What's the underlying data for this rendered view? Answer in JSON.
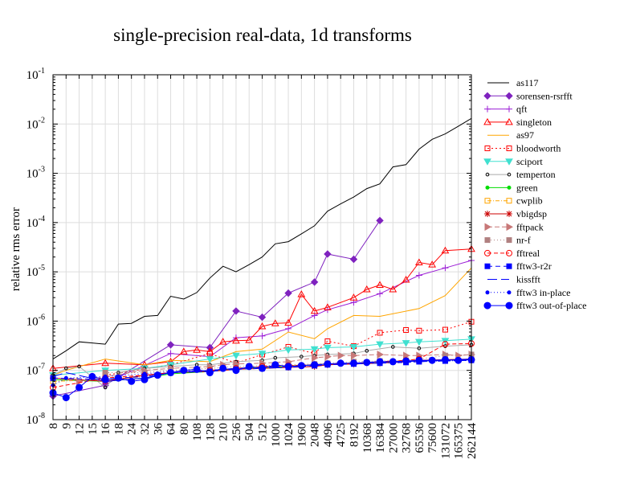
{
  "chart_data": {
    "type": "line",
    "title": "single-precision real-data, 1d transforms",
    "xlabel": "",
    "ylabel": "relative rms error",
    "y_scale": "log",
    "ylim": [
      1e-08,
      0.1
    ],
    "y_ticks": [
      {
        "base": "10",
        "exp": "-8",
        "value": 1e-08
      },
      {
        "base": "10",
        "exp": "-7",
        "value": 1e-07
      },
      {
        "base": "10",
        "exp": "-6",
        "value": 1e-06
      },
      {
        "base": "10",
        "exp": "-5",
        "value": 1e-05
      },
      {
        "base": "10",
        "exp": "-4",
        "value": 0.0001
      },
      {
        "base": "10",
        "exp": "-3",
        "value": 0.001
      },
      {
        "base": "10",
        "exp": "-2",
        "value": 0.01
      },
      {
        "base": "10",
        "exp": "-1",
        "value": 0.1
      }
    ],
    "grid": true,
    "legend_position": "right",
    "categories": [
      "8",
      "9",
      "12",
      "15",
      "16",
      "18",
      "24",
      "32",
      "36",
      "64",
      "80",
      "108",
      "128",
      "210",
      "256",
      "504",
      "512",
      "1000",
      "1024",
      "1960",
      "2048",
      "4096",
      "4725",
      "8192",
      "10368",
      "16384",
      "27000",
      "32768",
      "65536",
      "75600",
      "131072",
      "165375",
      "262144"
    ],
    "series": [
      {
        "name": "as117",
        "color": "#000000",
        "dash": "",
        "marker": "none",
        "values": [
          1.7e-07,
          2.5e-07,
          3.8e-07,
          3.6e-07,
          3.4e-07,
          8.7e-07,
          9e-07,
          1.25e-06,
          1.3e-06,
          3.2e-06,
          2.8e-06,
          3.8e-06,
          7.5e-06,
          1.3e-05,
          1e-05,
          1.4e-05,
          2e-05,
          3.7e-05,
          4.1e-05,
          5.9e-05,
          8.6e-05,
          0.00017,
          0.00024,
          0.00033,
          0.00049,
          0.00061,
          0.00135,
          0.0015,
          0.0031,
          0.0049,
          0.0063,
          0.009,
          0.013
        ]
      },
      {
        "name": "sorensen-rsrfft",
        "color": "#7f22bf",
        "dash": "",
        "marker": "diamond",
        "values": [
          3e-08,
          null,
          null,
          null,
          5e-08,
          null,
          null,
          null,
          null,
          3.3e-07,
          null,
          null,
          2.9e-07,
          null,
          1.6e-06,
          null,
          1.2e-06,
          null,
          3.7e-06,
          null,
          6.2e-06,
          2.3e-05,
          null,
          1.8e-05,
          null,
          0.00011,
          null,
          null,
          null,
          null,
          null,
          null,
          null
        ]
      },
      {
        "name": "qft",
        "color": "#9c1fd6",
        "dash": "",
        "marker": "plus",
        "values": [
          null,
          null,
          null,
          null,
          5.5e-08,
          null,
          null,
          null,
          null,
          2.2e-07,
          null,
          null,
          1.9e-07,
          null,
          4.6e-07,
          null,
          5e-07,
          null,
          7e-07,
          null,
          1.3e-06,
          1.7e-06,
          null,
          2.4e-06,
          null,
          3.6e-06,
          null,
          null,
          8.5e-06,
          null,
          1.2e-05,
          null,
          1.7e-05
        ]
      },
      {
        "name": "singleton",
        "color": "#ff0000",
        "dash": "",
        "marker": "triangle-open",
        "values": [
          1.1e-07,
          null,
          null,
          null,
          1.4e-07,
          null,
          null,
          1.3e-07,
          null,
          1.5e-07,
          2.4e-07,
          2.6e-07,
          2.4e-07,
          3.8e-07,
          4e-07,
          4.1e-07,
          7.8e-07,
          9e-07,
          9.2e-07,
          3.5e-06,
          1.6e-06,
          1.9e-06,
          null,
          3e-06,
          4.4e-06,
          5.4e-06,
          4.4e-06,
          6.9e-06,
          1.55e-05,
          1.4e-05,
          2.7e-05,
          null,
          2.9e-05
        ]
      },
      {
        "name": "as97",
        "color": "#ffa500",
        "dash": "",
        "marker": "none",
        "values": [
          8e-08,
          1e-07,
          null,
          null,
          1.7e-07,
          null,
          null,
          1.3e-07,
          null,
          1.6e-07,
          null,
          null,
          1.5e-07,
          null,
          2.4e-07,
          null,
          2.7e-07,
          null,
          6e-07,
          null,
          4.4e-07,
          7e-07,
          null,
          1.3e-06,
          null,
          1.25e-06,
          null,
          null,
          1.8e-06,
          null,
          3.3e-06,
          null,
          1.2e-05
        ]
      },
      {
        "name": "bloodworth",
        "color": "#ff0000",
        "dash": "2,3",
        "marker": "square-open",
        "values": [
          null,
          null,
          null,
          null,
          8e-08,
          null,
          null,
          null,
          null,
          1.3e-07,
          null,
          null,
          2.2e-07,
          null,
          1.4e-07,
          null,
          2.1e-07,
          null,
          3e-07,
          null,
          2.2e-07,
          3.9e-07,
          null,
          3.1e-07,
          null,
          5.8e-07,
          null,
          6.6e-07,
          6.4e-07,
          null,
          6.7e-07,
          null,
          9.7e-07
        ]
      },
      {
        "name": "sciport",
        "color": "#40e0d0",
        "dash": "",
        "marker": "triangle-down",
        "values": [
          8e-08,
          null,
          null,
          null,
          1e-07,
          null,
          null,
          1.1e-07,
          null,
          1.3e-07,
          null,
          null,
          1.7e-07,
          null,
          2e-07,
          null,
          2.2e-07,
          null,
          2.6e-07,
          null,
          2.7e-07,
          2.9e-07,
          null,
          3e-07,
          null,
          3.4e-07,
          null,
          3.6e-07,
          3.8e-07,
          null,
          4e-07,
          null,
          4.3e-07
        ]
      },
      {
        "name": "temperton",
        "color": "#aaaaaa",
        "dash": "",
        "marker": "small-circle",
        "values": [
          8e-08,
          1.1e-07,
          1.2e-07,
          null,
          4.5e-08,
          9e-08,
          null,
          1.1e-07,
          null,
          1.2e-07,
          null,
          1.3e-07,
          1.3e-07,
          null,
          1.5e-07,
          null,
          1.6e-07,
          1.8e-07,
          null,
          1.9e-07,
          2e-07,
          2.1e-07,
          null,
          2.2e-07,
          2.5e-07,
          null,
          3e-07,
          null,
          2.8e-07,
          null,
          3.1e-07,
          null,
          3.3e-07
        ]
      },
      {
        "name": "green",
        "color": "#00dd00",
        "dash": "",
        "marker": "dot",
        "values": [
          6.5e-08,
          null,
          null,
          null,
          6e-08,
          null,
          null,
          7e-08,
          null,
          8.5e-08,
          null,
          null,
          9.5e-08,
          null,
          1.1e-07,
          null,
          1.15e-07,
          null,
          1.2e-07,
          null,
          1.3e-07,
          1.35e-07,
          null,
          1.4e-07,
          null,
          1.45e-07,
          null,
          1.5e-07,
          1.55e-07,
          null,
          1.6e-07,
          null,
          1.7e-07
        ]
      },
      {
        "name": "cwplib",
        "color": "#ffa500",
        "dash": "5,2,1,2",
        "marker": "square-open",
        "values": [
          6e-08,
          null,
          null,
          null,
          6.5e-08,
          null,
          null,
          7.5e-08,
          null,
          9e-08,
          null,
          null,
          1e-07,
          null,
          1.1e-07,
          null,
          1.2e-07,
          null,
          1.25e-07,
          null,
          1.3e-07,
          1.35e-07,
          null,
          1.4e-07,
          null,
          1.45e-07,
          null,
          1.5e-07,
          1.55e-07,
          null,
          1.6e-07,
          null,
          1.65e-07
        ]
      },
      {
        "name": "vbigdsp",
        "color": "#cc0000",
        "dash": "",
        "marker": "star",
        "values": [
          7e-08,
          null,
          null,
          null,
          6e-08,
          null,
          null,
          8e-08,
          null,
          9e-08,
          null,
          null,
          9.5e-08,
          null,
          1.05e-07,
          null,
          1.1e-07,
          null,
          1.15e-07,
          null,
          1.2e-07,
          1.3e-07,
          null,
          1.35e-07,
          null,
          1.4e-07,
          null,
          1.5e-07,
          1.6e-07,
          null,
          1.65e-07,
          null,
          1.7e-07
        ]
      },
      {
        "name": "fftpack",
        "color": "#c87878",
        "dash": "6,3",
        "marker": "triangle-right",
        "values": [
          7e-08,
          null,
          6e-08,
          null,
          7.5e-08,
          null,
          null,
          1e-07,
          null,
          1.1e-07,
          null,
          null,
          1.2e-07,
          1.3e-07,
          1.35e-07,
          null,
          1.4e-07,
          null,
          1.5e-07,
          null,
          1.8e-07,
          1.9e-07,
          2e-07,
          2e-07,
          null,
          2.1e-07,
          null,
          2e-07,
          2e-07,
          null,
          2.1e-07,
          2e-07,
          2.1e-07
        ]
      },
      {
        "name": "nr-f",
        "color": "#b08080",
        "dash": "1,3",
        "marker": "square",
        "values": [
          null,
          null,
          null,
          null,
          9e-08,
          null,
          null,
          9e-08,
          null,
          1e-07,
          null,
          null,
          1.1e-07,
          null,
          1.2e-07,
          null,
          1.25e-07,
          null,
          1.3e-07,
          null,
          1.35e-07,
          1.4e-07,
          null,
          1.5e-07,
          null,
          1.55e-07,
          null,
          1.6e-07,
          1.7e-07,
          null,
          2e-07,
          null,
          2.1e-07
        ]
      },
      {
        "name": "fftreal",
        "color": "#ff0000",
        "dash": "5,3",
        "marker": "circle-open",
        "values": [
          4.5e-08,
          null,
          null,
          null,
          7e-08,
          null,
          null,
          8e-08,
          null,
          9e-08,
          null,
          null,
          1e-07,
          null,
          1.1e-07,
          null,
          1.2e-07,
          null,
          1.25e-07,
          null,
          1.3e-07,
          1.35e-07,
          null,
          1.4e-07,
          null,
          1.5e-07,
          null,
          1.6e-07,
          1.7e-07,
          null,
          3.4e-07,
          null,
          3.5e-07
        ]
      },
      {
        "name": "fftw3-r2r",
        "color": "#0000ff",
        "dash": "6,4",
        "marker": "square",
        "values": [
          7e-08,
          null,
          null,
          null,
          6.5e-08,
          7e-08,
          null,
          7.5e-08,
          null,
          9e-08,
          null,
          null,
          9.5e-08,
          null,
          1.05e-07,
          null,
          1.1e-07,
          null,
          1.15e-07,
          null,
          1.25e-07,
          1.3e-07,
          null,
          1.35e-07,
          null,
          1.4e-07,
          null,
          1.45e-07,
          1.5e-07,
          null,
          1.55e-07,
          null,
          1.6e-07
        ]
      },
      {
        "name": "kissfft",
        "color": "#0000ff",
        "dash": "12,5",
        "marker": "none",
        "values": [
          7.5e-08,
          9e-08,
          null,
          null,
          6e-08,
          null,
          null,
          7e-08,
          null,
          9e-08,
          null,
          null,
          1e-07,
          null,
          1.1e-07,
          null,
          1.15e-07,
          null,
          1.2e-07,
          null,
          1.3e-07,
          1.35e-07,
          null,
          1.4e-07,
          null,
          1.45e-07,
          null,
          1.5e-07,
          1.55e-07,
          null,
          1.6e-07,
          null,
          1.7e-07
        ]
      },
      {
        "name": "fftw3 in-place",
        "color": "#0000ff",
        "dash": "1,3",
        "marker": "dot",
        "values": [
          5e-08,
          7e-08,
          null,
          null,
          7.5e-08,
          null,
          null,
          8.5e-08,
          null,
          9.5e-08,
          null,
          null,
          1e-07,
          null,
          1.1e-07,
          null,
          1.15e-07,
          null,
          1.2e-07,
          null,
          1.25e-07,
          1.3e-07,
          null,
          1.35e-07,
          null,
          1.4e-07,
          null,
          1.45e-07,
          1.5e-07,
          null,
          1.55e-07,
          null,
          1.6e-07
        ]
      },
      {
        "name": "fftw3 out-of-place",
        "color": "#0000ff",
        "dash": "",
        "marker": "big-circle",
        "values": [
          3.5e-08,
          2.8e-08,
          4.5e-08,
          7.5e-08,
          6.5e-08,
          7e-08,
          6e-08,
          6.5e-08,
          8e-08,
          9e-08,
          1e-07,
          1.05e-07,
          9e-08,
          1.1e-07,
          1e-07,
          1.2e-07,
          1.1e-07,
          1.3e-07,
          1.2e-07,
          1.25e-07,
          1.3e-07,
          1.35e-07,
          1.4e-07,
          1.4e-07,
          1.45e-07,
          1.5e-07,
          1.5e-07,
          1.55e-07,
          1.6e-07,
          1.6e-07,
          1.65e-07,
          1.6e-07,
          1.65e-07
        ]
      }
    ]
  }
}
